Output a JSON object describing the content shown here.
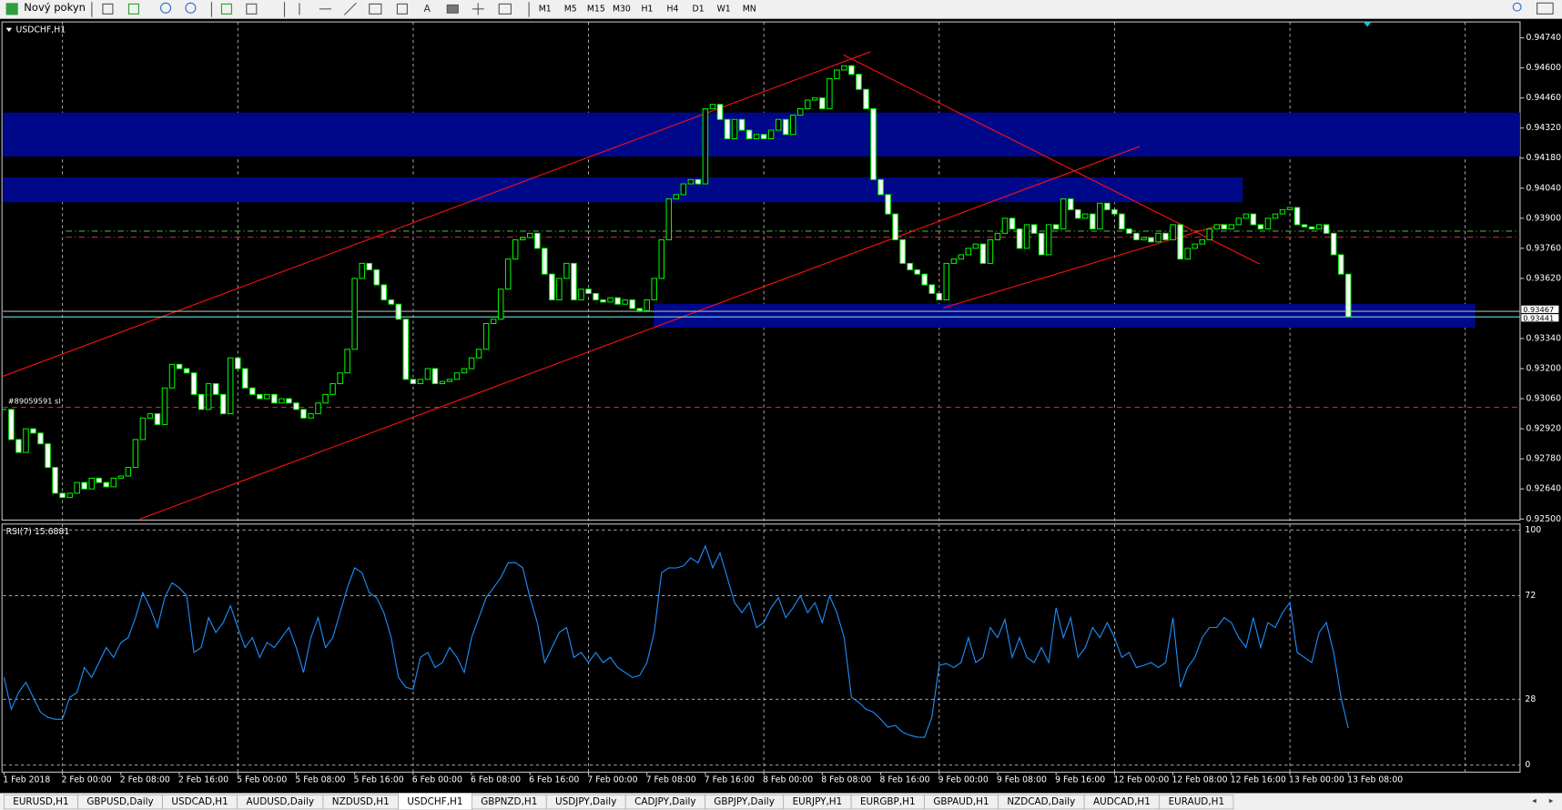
{
  "toolbar": {
    "new_order": "Nový pokyn",
    "text_tool_icon": "A",
    "timeframes": [
      "M1",
      "M5",
      "M15",
      "M30",
      "H1",
      "H4",
      "D1",
      "W1",
      "MN"
    ]
  },
  "tabs": [
    "EURUSD,H1",
    "GBPUSD,Daily",
    "USDCAD,H1",
    "AUDUSD,Daily",
    "NZDUSD,H1",
    "USDCHF,H1",
    "GBPNZD,H1",
    "USDJPY,Daily",
    "CADJPY,Daily",
    "GBPJPY,Daily",
    "EURJPY,H1",
    "EURGBP,H1",
    "GBPAUD,H1",
    "NZDCAD,Daily",
    "AUDCAD,H1",
    "EURAUD,H1"
  ],
  "active_tab": 5,
  "chart_data": [
    {
      "type": "candlestick",
      "title": "USDCHF,H1",
      "categories": [
        "1 Feb 2018",
        null,
        null,
        null,
        null,
        null,
        null,
        null,
        "2 Feb 00:00",
        null,
        null,
        null,
        null,
        null,
        null,
        null,
        "2 Feb 08:00",
        null,
        null,
        null,
        null,
        null,
        null,
        null,
        "2 Feb 16:00",
        null,
        null,
        null,
        null,
        null,
        null,
        null,
        "5 Feb 00:00",
        null,
        null,
        null,
        null,
        null,
        null,
        null,
        "5 Feb 08:00",
        null,
        null,
        null,
        null,
        null,
        null,
        null,
        "5 Feb 16:00",
        null,
        null,
        null,
        null,
        null,
        null,
        null,
        "6 Feb 00:00",
        null,
        null,
        null,
        null,
        null,
        null,
        null,
        "6 Feb 08:00",
        null,
        null,
        null,
        null,
        null,
        null,
        null,
        "6 Feb 16:00",
        null,
        null,
        null,
        null,
        null,
        null,
        null,
        "7 Feb 00:00",
        null,
        null,
        null,
        null,
        null,
        null,
        null,
        "7 Feb 08:00",
        null,
        null,
        null,
        null,
        null,
        null,
        null,
        "7 Feb 16:00",
        null,
        null,
        null,
        null,
        null,
        null,
        null,
        "8 Feb 00:00",
        null,
        null,
        null,
        null,
        null,
        null,
        null,
        "8 Feb 08:00",
        null,
        null,
        null,
        null,
        null,
        null,
        null,
        "8 Feb 16:00",
        null,
        null,
        null,
        null,
        null,
        null,
        null,
        "9 Feb 00:00",
        null,
        null,
        null,
        null,
        null,
        null,
        null,
        "9 Feb 08:00",
        null,
        null,
        null,
        null,
        null,
        null,
        null,
        "9 Feb 16:00",
        null,
        null,
        null,
        null,
        null,
        null,
        null,
        "12 Feb 00:00",
        null,
        null,
        null,
        null,
        null,
        null,
        null,
        "12 Feb 08:00",
        null,
        null,
        null,
        null,
        null,
        null,
        null,
        "12 Feb 16:00",
        null,
        null,
        null,
        null,
        null,
        null,
        null,
        "13 Feb 00:00",
        null,
        null,
        null,
        null,
        null,
        null,
        null,
        "13 Feb 08:00"
      ],
      "close": [
        0.9301,
        0.9287,
        0.9281,
        0.9292,
        0.929,
        0.9285,
        0.9274,
        0.9262,
        0.926,
        0.9262,
        0.9267,
        0.9264,
        0.9269,
        0.9267,
        0.9265,
        0.9269,
        0.927,
        0.9274,
        0.9287,
        0.9297,
        0.9299,
        0.9294,
        0.9311,
        0.9322,
        0.932,
        0.9318,
        0.9308,
        0.9301,
        0.9313,
        0.9308,
        0.9299,
        0.9325,
        0.932,
        0.9311,
        0.9308,
        0.9306,
        0.9308,
        0.9304,
        0.9306,
        0.9304,
        0.9301,
        0.9297,
        0.9299,
        0.9304,
        0.9308,
        0.9313,
        0.9318,
        0.9329,
        0.9362,
        0.9369,
        0.9366,
        0.9359,
        0.9352,
        0.935,
        0.9343,
        0.9315,
        0.9313,
        0.9315,
        0.932,
        0.9313,
        0.9314,
        0.9315,
        0.9318,
        0.932,
        0.9325,
        0.9329,
        0.9341,
        0.9343,
        0.9357,
        0.9371,
        0.938,
        0.9381,
        0.9383,
        0.9376,
        0.9364,
        0.9352,
        0.9362,
        0.9369,
        0.9352,
        0.9357,
        0.9355,
        0.9352,
        0.9351,
        0.9353,
        0.935,
        0.9352,
        0.9348,
        0.9347,
        0.9352,
        0.9362,
        0.938,
        0.9399,
        0.9401,
        0.9406,
        0.9408,
        0.9406,
        0.9441,
        0.9443,
        0.9436,
        0.9427,
        0.9436,
        0.9431,
        0.9427,
        0.9429,
        0.9427,
        0.9431,
        0.9436,
        0.9429,
        0.9438,
        0.9441,
        0.9445,
        0.9446,
        0.9441,
        0.9455,
        0.9459,
        0.9461,
        0.9457,
        0.945,
        0.9441,
        0.9408,
        0.9401,
        0.9392,
        0.938,
        0.9369,
        0.9366,
        0.9364,
        0.9359,
        0.9355,
        0.9352,
        0.9369,
        0.9371,
        0.9373,
        0.9376,
        0.9378,
        0.9369,
        0.938,
        0.9383,
        0.939,
        0.9385,
        0.9376,
        0.9387,
        0.9383,
        0.9373,
        0.9387,
        0.9385,
        0.9399,
        0.9394,
        0.939,
        0.9392,
        0.9385,
        0.9397,
        0.9394,
        0.9392,
        0.9385,
        0.9383,
        0.938,
        0.9381,
        0.9379,
        0.9383,
        0.938,
        0.9387,
        0.9371,
        0.9376,
        0.9378,
        0.938,
        0.9385,
        0.9387,
        0.9385,
        0.9387,
        0.939,
        0.9392,
        0.9387,
        0.9385,
        0.939,
        0.9392,
        0.9394,
        0.9395,
        0.9387,
        0.9386,
        0.9385,
        0.9387,
        0.9383,
        0.9373,
        0.9364,
        0.93441
      ],
      "ylim": [
        0.92495,
        0.94814
      ],
      "yticks": [
        {
          "value": 0.9474,
          "label": "0.94740"
        },
        {
          "value": 0.946,
          "label": "0.94600"
        },
        {
          "value": 0.9446,
          "label": "0.94460"
        },
        {
          "value": 0.9432,
          "label": "0.94320"
        },
        {
          "value": 0.9418,
          "label": "0.94180"
        },
        {
          "value": 0.9404,
          "label": "0.94040"
        },
        {
          "value": 0.939,
          "label": "0.93900"
        },
        {
          "value": 0.9376,
          "label": "0.93760"
        },
        {
          "value": 0.9362,
          "label": "0.93620"
        },
        {
          "value": 0.9334,
          "label": "0.93340"
        },
        {
          "value": 0.932,
          "label": "0.93200"
        },
        {
          "value": 0.9306,
          "label": "0.93060"
        },
        {
          "value": 0.9292,
          "label": "0.92920"
        },
        {
          "value": 0.9278,
          "label": "0.92780"
        },
        {
          "value": 0.9264,
          "label": "0.92640"
        },
        {
          "value": 0.925,
          "label": "0.92500"
        }
      ],
      "price_lines": [
        {
          "value": 0.93467,
          "label": "0.93467"
        },
        {
          "value": 0.93441,
          "label": "0.93441"
        }
      ],
      "order_line": {
        "value": 0.9302,
        "label": "#89059591 sl"
      }
    },
    {
      "type": "line",
      "title": "RSI(7) 15.6881",
      "color": "#1e90ff",
      "values": [
        37.3,
        23.7,
        30.9,
        35.2,
        28.8,
        22.5,
        20.3,
        19.5,
        19.5,
        28.8,
        30.9,
        41.5,
        37.3,
        43.6,
        50.0,
        45.8,
        52.1,
        54.2,
        62.7,
        73.3,
        66.9,
        58.5,
        71.2,
        77.5,
        75.4,
        72.0,
        47.9,
        50.0,
        62.7,
        56.4,
        60.6,
        67.8,
        58.5,
        50.0,
        54.2,
        45.8,
        52.1,
        50.0,
        54.2,
        58.5,
        50.0,
        39.4,
        54.2,
        62.7,
        50.0,
        54.2,
        64.8,
        75.4,
        83.9,
        81.8,
        73.3,
        71.2,
        64.8,
        54.2,
        37.3,
        33.1,
        32.2,
        45.8,
        47.9,
        41.5,
        43.6,
        50.0,
        45.8,
        39.4,
        54.2,
        62.7,
        71.2,
        75.4,
        79.7,
        86.0,
        86.1,
        83.9,
        71.2,
        60.6,
        43.6,
        50.0,
        56.4,
        58.5,
        45.8,
        47.9,
        43.6,
        47.9,
        43.6,
        45.8,
        41.5,
        39.4,
        37.3,
        38.1,
        43.6,
        56.4,
        81.8,
        83.9,
        83.8,
        84.7,
        88.1,
        86.0,
        93.2,
        83.9,
        90.3,
        79.7,
        69.1,
        64.8,
        69.1,
        58.5,
        60.6,
        66.9,
        71.2,
        62.7,
        66.9,
        72.0,
        64.8,
        69.1,
        60.6,
        72.0,
        64.8,
        54.2,
        28.8,
        26.7,
        23.7,
        22.5,
        19.5,
        16.1,
        16.9,
        14.0,
        12.7,
        11.9,
        11.8,
        20.3,
        42.4,
        43.2,
        41.5,
        43.6,
        54.2,
        43.6,
        45.8,
        58.5,
        54.2,
        61.9,
        45.8,
        54.2,
        45.8,
        43.6,
        50.0,
        43.6,
        66.9,
        54.2,
        62.7,
        45.8,
        50.0,
        58.5,
        54.2,
        60.6,
        54.2,
        45.8,
        47.9,
        41.5,
        42.4,
        43.6,
        41.5,
        43.6,
        62.7,
        33.1,
        41.5,
        45.8,
        54.2,
        58.5,
        58.5,
        62.7,
        60.6,
        54.2,
        50.0,
        62.7,
        50.0,
        60.6,
        58.5,
        64.8,
        69.1,
        47.9,
        45.8,
        43.6,
        56.4,
        60.6,
        47.9,
        28.8,
        15.6881
      ],
      "ylim": [
        -3,
        102.5
      ],
      "yticks": [
        0,
        28,
        72,
        100
      ],
      "grid": true
    }
  ]
}
